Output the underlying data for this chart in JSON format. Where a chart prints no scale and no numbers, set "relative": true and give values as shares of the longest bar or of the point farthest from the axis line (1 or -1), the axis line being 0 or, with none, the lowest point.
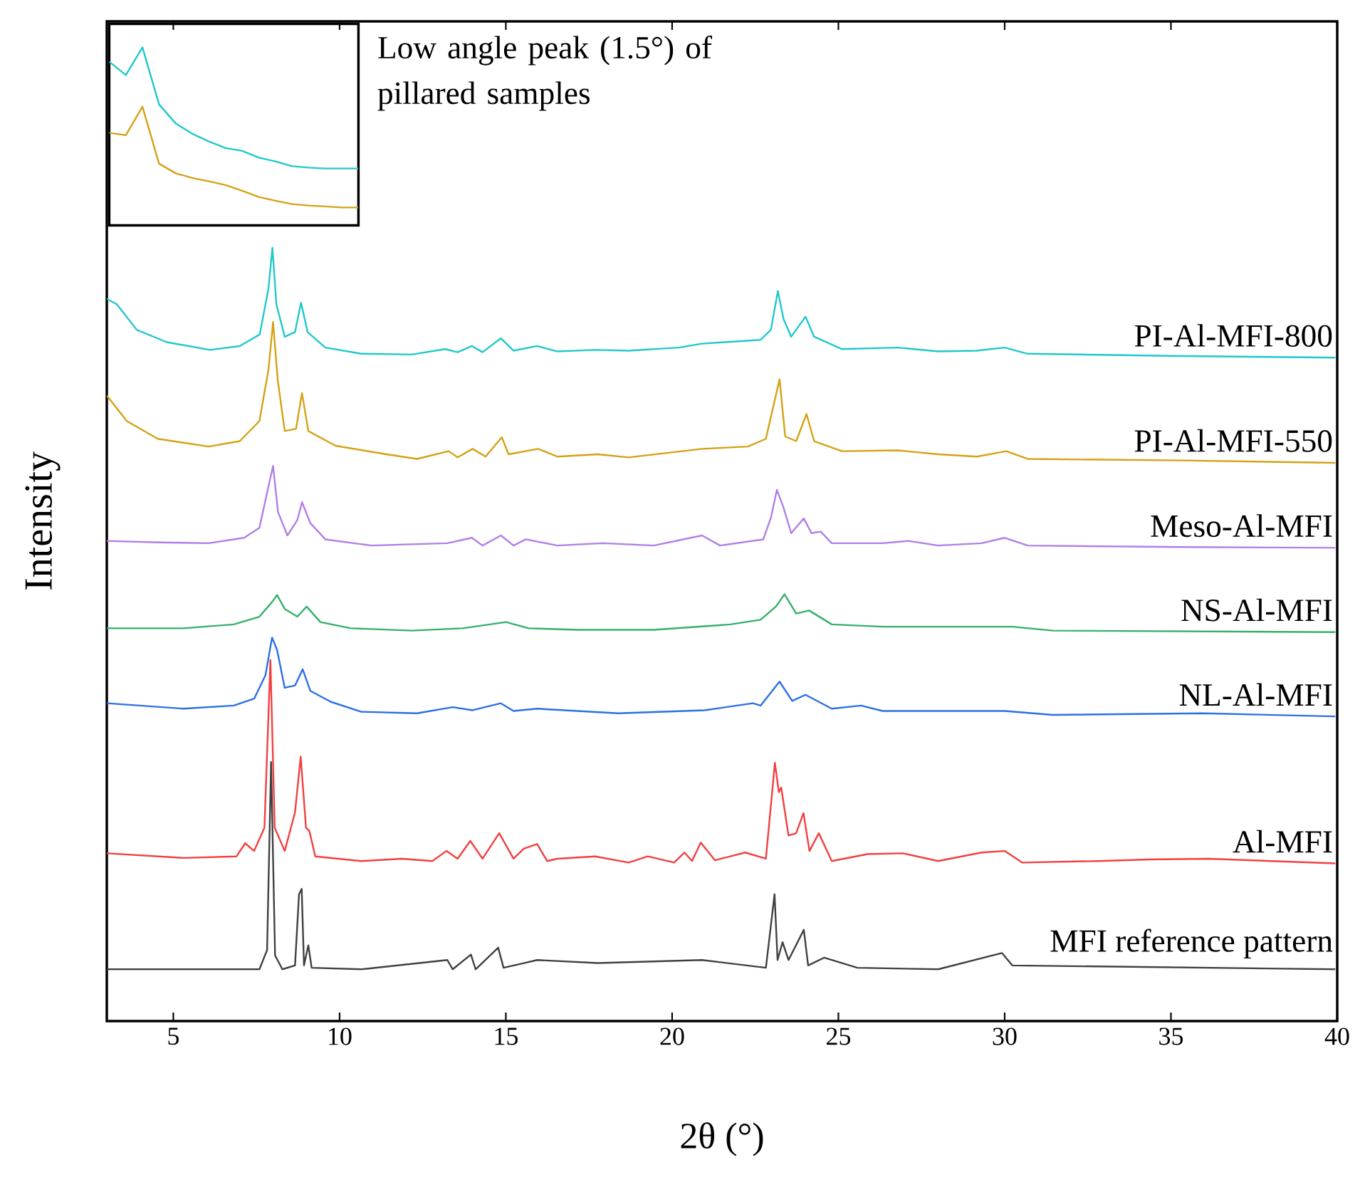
{
  "chart_data": [
    {
      "type": "line",
      "relative": true,
      "xlabel": "2θ (°)",
      "ylabel": "Intensity",
      "xlim": [
        3,
        40
      ],
      "xticks": [
        5,
        10,
        15,
        20,
        25,
        30,
        35,
        40
      ],
      "series": [
        {
          "name": "PI-Al-MFI-800",
          "color": "#20c8cc",
          "x": [
            3.0,
            3.3,
            3.9,
            4.8,
            6.1,
            7.0,
            7.6,
            7.86,
            7.98,
            8.1,
            8.35,
            8.66,
            8.84,
            9.04,
            9.57,
            10.65,
            12.17,
            13.17,
            13.55,
            13.98,
            14.3,
            14.85,
            15.23,
            15.94,
            16.55,
            17.69,
            18.69,
            20.2,
            20.9,
            22.66,
            22.97,
            23.18,
            23.35,
            23.58,
            24.01,
            24.27,
            25.11,
            26.79,
            28.0,
            29.16,
            30.0,
            30.69,
            35.28,
            39.94
          ],
          "values": [
            0.934,
            0.927,
            0.894,
            0.878,
            0.868,
            0.873,
            0.888,
            0.947,
            1.0,
            0.927,
            0.885,
            0.891,
            0.929,
            0.891,
            0.871,
            0.863,
            0.862,
            0.869,
            0.865,
            0.873,
            0.865,
            0.883,
            0.867,
            0.873,
            0.866,
            0.868,
            0.867,
            0.871,
            0.876,
            0.881,
            0.894,
            0.944,
            0.908,
            0.885,
            0.911,
            0.885,
            0.869,
            0.871,
            0.866,
            0.867,
            0.871,
            0.863,
            0.86,
            0.858
          ]
        },
        {
          "name": "PI-Al-MFI-550",
          "color": "#d4a215",
          "x": [
            3.0,
            3.6,
            4.53,
            6.06,
            7.0,
            7.59,
            7.86,
            8.0,
            8.14,
            8.35,
            8.69,
            8.87,
            9.06,
            9.88,
            11.41,
            12.33,
            13.28,
            13.55,
            14.0,
            14.39,
            14.88,
            15.08,
            15.97,
            16.55,
            17.77,
            18.69,
            20.9,
            22.28,
            22.82,
            23.23,
            23.4,
            23.73,
            24.04,
            24.27,
            25.11,
            26.79,
            28.0,
            29.16,
            30.05,
            30.69,
            35.28,
            39.94
          ],
          "values": [
            0.809,
            0.776,
            0.753,
            0.743,
            0.75,
            0.776,
            0.842,
            0.904,
            0.829,
            0.763,
            0.766,
            0.812,
            0.763,
            0.744,
            0.733,
            0.727,
            0.737,
            0.729,
            0.74,
            0.73,
            0.755,
            0.733,
            0.74,
            0.73,
            0.733,
            0.729,
            0.74,
            0.743,
            0.753,
            0.83,
            0.756,
            0.75,
            0.785,
            0.75,
            0.737,
            0.738,
            0.733,
            0.73,
            0.737,
            0.727,
            0.725,
            0.722
          ]
        },
        {
          "name": "Meso-Al-MFI",
          "color": "#b07fe8",
          "x": [
            3.0,
            4.53,
            6.06,
            7.13,
            7.59,
            7.89,
            8.0,
            8.15,
            8.43,
            8.73,
            8.87,
            9.12,
            9.57,
            10.95,
            13.24,
            13.98,
            14.3,
            14.85,
            15.23,
            15.6,
            16.55,
            17.92,
            19.45,
            20.9,
            21.44,
            22.74,
            22.97,
            23.15,
            23.35,
            23.58,
            23.96,
            24.19,
            24.47,
            24.8,
            26.33,
            27.1,
            28.0,
            29.31,
            30.0,
            30.69,
            35.28,
            39.94
          ],
          "values": [
            0.621,
            0.619,
            0.618,
            0.625,
            0.638,
            0.697,
            0.718,
            0.658,
            0.628,
            0.648,
            0.671,
            0.644,
            0.623,
            0.615,
            0.618,
            0.625,
            0.615,
            0.628,
            0.615,
            0.623,
            0.615,
            0.618,
            0.615,
            0.628,
            0.615,
            0.623,
            0.651,
            0.687,
            0.664,
            0.631,
            0.65,
            0.631,
            0.633,
            0.618,
            0.618,
            0.621,
            0.615,
            0.618,
            0.625,
            0.615,
            0.613,
            0.612
          ]
        },
        {
          "name": "NS-Al-MFI",
          "color": "#35b06a",
          "x": [
            3.0,
            5.3,
            6.82,
            7.59,
            7.97,
            8.12,
            8.35,
            8.73,
            9.01,
            9.42,
            10.34,
            12.17,
            13.7,
            15.0,
            15.69,
            17.16,
            19.45,
            21.75,
            22.66,
            23.12,
            23.38,
            23.73,
            24.12,
            24.8,
            26.33,
            28.0,
            30.23,
            31.45,
            39.94
          ],
          "values": [
            0.508,
            0.508,
            0.513,
            0.523,
            0.542,
            0.551,
            0.533,
            0.523,
            0.536,
            0.516,
            0.508,
            0.505,
            0.508,
            0.516,
            0.508,
            0.506,
            0.506,
            0.513,
            0.519,
            0.536,
            0.552,
            0.527,
            0.531,
            0.513,
            0.51,
            0.51,
            0.51,
            0.505,
            0.503
          ]
        },
        {
          "name": "NL-Al-MFI",
          "color": "#2c6fe6",
          "x": [
            3.0,
            5.3,
            6.82,
            7.43,
            7.77,
            7.97,
            8.12,
            8.35,
            8.66,
            8.89,
            9.12,
            9.73,
            10.65,
            12.33,
            13.4,
            14.0,
            14.85,
            15.23,
            15.94,
            18.38,
            20.98,
            22.43,
            22.66,
            23.23,
            23.61,
            24.01,
            24.8,
            25.68,
            26.33,
            28.0,
            30.0,
            31.45,
            35.96,
            39.94
          ],
          "values": [
            0.411,
            0.404,
            0.408,
            0.417,
            0.447,
            0.496,
            0.48,
            0.431,
            0.434,
            0.455,
            0.427,
            0.413,
            0.4,
            0.398,
            0.406,
            0.402,
            0.411,
            0.401,
            0.404,
            0.398,
            0.402,
            0.411,
            0.408,
            0.439,
            0.414,
            0.422,
            0.404,
            0.408,
            0.401,
            0.401,
            0.401,
            0.396,
            0.398,
            0.394
          ]
        },
        {
          "name": "Al-MFI",
          "color": "#f24040",
          "x": [
            3.0,
            5.3,
            6.9,
            7.16,
            7.43,
            7.74,
            7.92,
            8.05,
            8.35,
            8.66,
            8.83,
            8.99,
            9.09,
            9.27,
            10.65,
            11.87,
            12.79,
            13.21,
            13.55,
            13.93,
            14.3,
            14.8,
            15.23,
            15.54,
            15.94,
            16.24,
            16.55,
            17.69,
            18.69,
            19.27,
            20.06,
            20.37,
            20.6,
            20.86,
            21.29,
            22.2,
            22.82,
            23.09,
            23.21,
            23.28,
            23.5,
            23.73,
            23.95,
            24.13,
            24.41,
            24.8,
            25.88,
            26.95,
            28.0,
            29.31,
            30.0,
            30.53,
            32.83,
            34.36,
            36.12,
            39.94
          ],
          "values": [
            0.217,
            0.211,
            0.213,
            0.23,
            0.22,
            0.25,
            0.467,
            0.25,
            0.22,
            0.27,
            0.342,
            0.25,
            0.246,
            0.213,
            0.207,
            0.21,
            0.207,
            0.22,
            0.21,
            0.233,
            0.21,
            0.243,
            0.21,
            0.223,
            0.229,
            0.207,
            0.21,
            0.213,
            0.205,
            0.213,
            0.205,
            0.218,
            0.207,
            0.231,
            0.208,
            0.218,
            0.21,
            0.334,
            0.296,
            0.302,
            0.24,
            0.243,
            0.269,
            0.22,
            0.243,
            0.207,
            0.216,
            0.217,
            0.207,
            0.218,
            0.22,
            0.205,
            0.207,
            0.209,
            0.21,
            0.204
          ]
        },
        {
          "name": "MFI reference pattern",
          "color": "#404040",
          "x": [
            3.0,
            7.59,
            7.82,
            7.94,
            8.06,
            8.28,
            8.66,
            8.78,
            8.86,
            8.93,
            9.06,
            9.16,
            10.65,
            13.24,
            13.4,
            13.95,
            14.09,
            14.77,
            14.93,
            15.54,
            15.94,
            17.77,
            20.9,
            22.82,
            23.08,
            23.17,
            23.32,
            23.5,
            23.96,
            24.09,
            24.57,
            25.57,
            28.0,
            29.92,
            30.23,
            39.94
          ],
          "values": [
            0.067,
            0.067,
            0.092,
            0.335,
            0.085,
            0.067,
            0.072,
            0.164,
            0.171,
            0.072,
            0.098,
            0.069,
            0.067,
            0.079,
            0.067,
            0.086,
            0.067,
            0.095,
            0.069,
            0.075,
            0.079,
            0.075,
            0.079,
            0.069,
            0.164,
            0.079,
            0.102,
            0.079,
            0.118,
            0.072,
            0.082,
            0.069,
            0.067,
            0.088,
            0.072,
            0.067
          ]
        }
      ]
    },
    {
      "type": "line",
      "relative": true,
      "annotations": [
        "Low angle peak (1.5°) of pillared samples"
      ],
      "categories": [
        null,
        null,
        null,
        null,
        null,
        null,
        null,
        null,
        null,
        null,
        null,
        null,
        null,
        null,
        null,
        null
      ],
      "series": [
        {
          "color": "#20c8cc",
          "values": [
            0.92,
            0.845,
            1.0,
            0.68,
            0.573,
            0.515,
            0.472,
            0.435,
            0.419,
            0.381,
            0.36,
            0.333,
            0.325,
            0.32,
            0.32,
            0.32
          ]
        },
        {
          "color": "#d4a215",
          "values": [
            0.52,
            0.507,
            0.667,
            0.347,
            0.293,
            0.267,
            0.248,
            0.227,
            0.195,
            0.16,
            0.139,
            0.12,
            0.112,
            0.107,
            0.101,
            0.101
          ]
        }
      ]
    }
  ]
}
